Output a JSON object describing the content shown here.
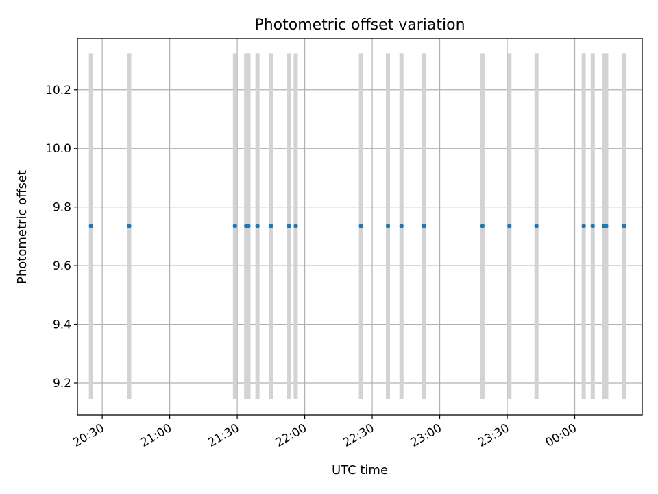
{
  "chart_data": {
    "type": "scatter",
    "title": "Photometric offset variation",
    "xlabel": "UTC time",
    "ylabel": "Photometric offset",
    "x_ticks": [
      "20:30",
      "21:00",
      "21:30",
      "22:00",
      "22:30",
      "23:00",
      "23:30",
      "00:00"
    ],
    "xlim": [
      "20:19",
      "00:30"
    ],
    "y_ticks": [
      "9.2",
      "9.4",
      "9.6",
      "9.8",
      "10.0",
      "10.2"
    ],
    "ylim": [
      9.09,
      10.375
    ],
    "grid": true,
    "vertical_bars": {
      "color": "#d3d3d3",
      "ymin": 9.145,
      "ymax": 10.325
    },
    "point_color": "#1f77b4",
    "points": [
      {
        "x": "20:25",
        "y": 9.735
      },
      {
        "x": "20:42",
        "y": 9.735
      },
      {
        "x": "21:29",
        "y": 9.735
      },
      {
        "x": "21:34",
        "y": 9.735
      },
      {
        "x": "21:35",
        "y": 9.735
      },
      {
        "x": "21:39",
        "y": 9.735
      },
      {
        "x": "21:45",
        "y": 9.735
      },
      {
        "x": "21:53",
        "y": 9.735
      },
      {
        "x": "21:56",
        "y": 9.735
      },
      {
        "x": "22:25",
        "y": 9.735
      },
      {
        "x": "22:37",
        "y": 9.735
      },
      {
        "x": "22:43",
        "y": 9.735
      },
      {
        "x": "22:53",
        "y": 9.735
      },
      {
        "x": "23:19",
        "y": 9.735
      },
      {
        "x": "23:31",
        "y": 9.735
      },
      {
        "x": "23:43",
        "y": 9.735
      },
      {
        "x": "00:04",
        "y": 9.735
      },
      {
        "x": "00:08",
        "y": 9.735
      },
      {
        "x": "00:13",
        "y": 9.735
      },
      {
        "x": "00:14",
        "y": 9.735
      },
      {
        "x": "00:22",
        "y": 9.735
      }
    ]
  }
}
